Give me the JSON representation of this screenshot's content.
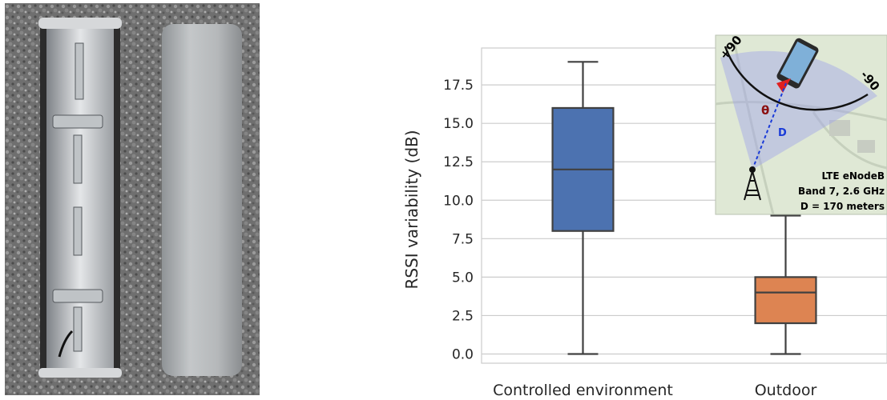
{
  "chart_data": {
    "type": "box",
    "ylabel": "RSSI variability (dB)",
    "ylim": [
      -0.6,
      19.9
    ],
    "yticks": [
      "0.0",
      "2.5",
      "5.0",
      "7.5",
      "10.0",
      "12.5",
      "15.0",
      "17.5"
    ],
    "ytick_values": [
      0,
      2.5,
      5,
      7.5,
      10,
      12.5,
      15,
      17.5
    ],
    "grid": true,
    "categories": [
      "Controlled environment",
      "Outdoor"
    ],
    "boxes": [
      {
        "category": "Controlled environment",
        "min": 0,
        "q1": 8,
        "median": 12,
        "q3": 16,
        "max": 19,
        "color": "#4c72b0"
      },
      {
        "category": "Outdoor",
        "min": 0,
        "q1": 2,
        "median": 4,
        "q3": 5,
        "max": 9,
        "color": "#dd8452"
      }
    ]
  },
  "inset": {
    "angle_plus": "+90",
    "angle_minus": "-90",
    "theta_label": "θ",
    "distance_label": "D",
    "caption_line1": "LTE eNodeB",
    "caption_line2": "Band 7, 2.6 GHz",
    "caption_line3": "D = 170 meters"
  },
  "colors": {
    "grid": "#cccccc",
    "ink": "#404040",
    "inset_bg": "#dfe8d5",
    "sector": "#9fa3e8"
  }
}
